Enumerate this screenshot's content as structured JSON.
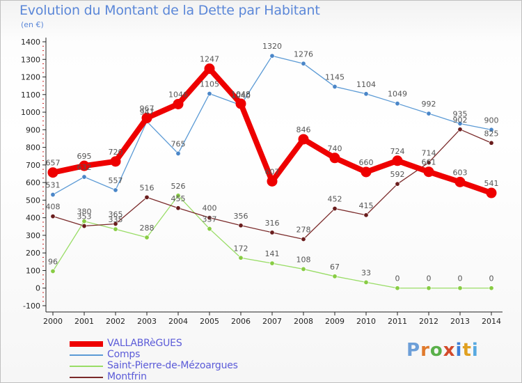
{
  "header": {
    "title": "Evolution du Montant de la Dette par Habitant",
    "subtitle": "(en €)"
  },
  "logo": {
    "text": "Proxiti",
    "letter_colors": [
      "#6d9fd8",
      "#e07a2c",
      "#5ab04a",
      "#d34a2a",
      "#3e7fd8",
      "#e0a020",
      "#57a9e0"
    ]
  },
  "chart_data": {
    "type": "line",
    "x": [
      "2000",
      "2001",
      "2002",
      "2003",
      "2004",
      "2005",
      "2006",
      "2007",
      "2008",
      "2009",
      "2010",
      "2011",
      "2012",
      "2013",
      "2014"
    ],
    "yticks": [
      -100,
      0,
      100,
      200,
      300,
      400,
      500,
      600,
      700,
      800,
      900,
      1000,
      1100,
      1200,
      1300,
      1400
    ],
    "ylim": [
      -100,
      1400
    ],
    "grid": false,
    "legend_position": "bottom-left",
    "series": [
      {
        "name": "VALLABRèGUES",
        "color": "#ee0000",
        "values": [
          657,
          695,
          720,
          967,
          1046,
          1247,
          1048,
          607,
          846,
          740,
          660,
          724,
          661,
          603,
          541
        ]
      },
      {
        "name": "Comps",
        "color": "#5b9ad5",
        "values": [
          531,
          632,
          557,
          947,
          765,
          1105,
          1040,
          1320,
          1276,
          1145,
          1104,
          1049,
          992,
          935,
          900
        ]
      },
      {
        "name": "Saint-Pierre-de-Mézoargues",
        "color": "#99dd66",
        "values": [
          96,
          380,
          335,
          288,
          526,
          337,
          172,
          141,
          108,
          67,
          33,
          0,
          0,
          0,
          0
        ]
      },
      {
        "name": "Montfrin",
        "color": "#7a2a2a",
        "values": [
          408,
          353,
          365,
          516,
          455,
          400,
          356,
          316,
          278,
          452,
          415,
          592,
          714,
          902,
          825
        ]
      }
    ]
  }
}
